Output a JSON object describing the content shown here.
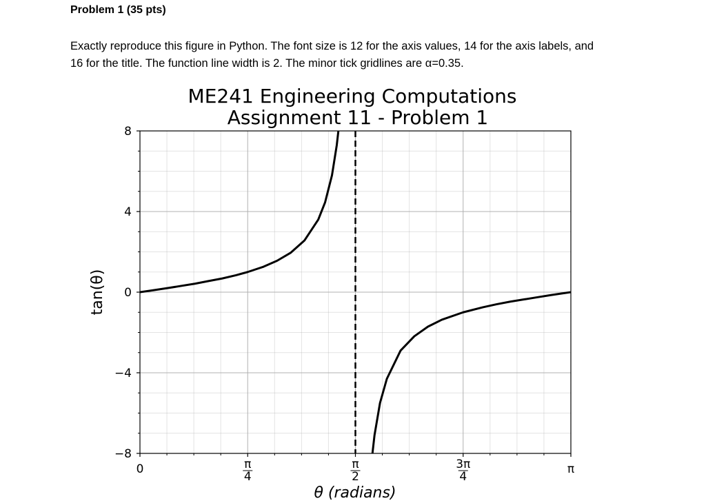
{
  "problem": {
    "heading": "Problem 1 (35 pts)",
    "instructions_line1": "Exactly reproduce this figure in Python. The font size is 12 for the axis values, 14 for the axis labels, and",
    "instructions_line2": "16 for the title.  The function line width is 2. The minor tick gridlines are α=0.35."
  },
  "chart_data": {
    "type": "line",
    "title_line1": "ME241 Engineering Computations",
    "title_line2": "Assignment 11 - Problem 1",
    "xlabel": "θ (radians)",
    "ylabel": "tan(θ)",
    "xlim": [
      0,
      3.14159
    ],
    "ylim": [
      -8,
      8
    ],
    "x_ticks": [
      {
        "value": 0,
        "label": "0"
      },
      {
        "value": 0.7854,
        "num": "π",
        "den": "4"
      },
      {
        "value": 1.5708,
        "num": "π",
        "den": "2"
      },
      {
        "value": 2.3562,
        "num": "3π",
        "den": "4"
      },
      {
        "value": 3.14159,
        "label": "π"
      }
    ],
    "y_ticks": [
      {
        "value": 8,
        "label": "8"
      },
      {
        "value": 4,
        "label": "4"
      },
      {
        "value": 0,
        "label": "0"
      },
      {
        "value": -4,
        "label": "−4"
      },
      {
        "value": -8,
        "label": "−8"
      }
    ],
    "x_minor_step": 0.19635,
    "y_minor_step": 1,
    "major_grid": true,
    "minor_grid": true,
    "function": "tan",
    "asymptote_x": 1.5708,
    "series": [
      {
        "x": [
          0,
          0.1,
          0.2,
          0.3,
          0.4,
          0.5,
          0.6,
          0.7,
          0.7854,
          0.9,
          1.0,
          1.1,
          1.2,
          1.3,
          1.35,
          1.4,
          1.435,
          1.45
        ],
        "y": [
          0,
          0.1,
          0.2,
          0.31,
          0.42,
          0.55,
          0.68,
          0.84,
          1.0,
          1.26,
          1.56,
          1.96,
          2.57,
          3.6,
          4.46,
          5.8,
          7.3,
          8.2
        ]
      },
      {
        "x": [
          1.69,
          1.71,
          1.75,
          1.8,
          1.9,
          2.0,
          2.1,
          2.2,
          2.3562,
          2.5,
          2.6,
          2.7,
          2.8,
          2.9,
          3.0,
          3.14159
        ],
        "y": [
          -8.3,
          -7.1,
          -5.5,
          -4.3,
          -2.9,
          -2.19,
          -1.71,
          -1.37,
          -1.0,
          -0.75,
          -0.6,
          -0.47,
          -0.36,
          -0.25,
          -0.14,
          0
        ]
      }
    ]
  }
}
